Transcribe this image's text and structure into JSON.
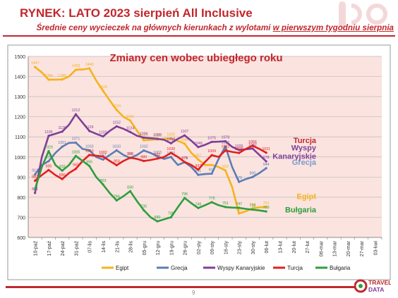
{
  "header": {
    "title": "RYNEK: LATO 2023 sierpień All Inclusive",
    "subtitle_prefix": "Średnie ceny wycieczek na głównych kierunkach z wylotami ",
    "subtitle_underlined": "w pierwszym tygodniu sierpnia"
  },
  "footer": {
    "page_number": "9",
    "logo_line1": "TRAVEL",
    "logo_line2": "DATA"
  },
  "colors": {
    "brand_red": "#c0272d",
    "plot_bg": "#fbe3df",
    "grid": "#bdbdbd"
  },
  "chart_data": {
    "type": "line",
    "title": "Zmiany cen wobec ubiegłego roku",
    "ylim": [
      600,
      1500
    ],
    "yticks": [
      600,
      700,
      800,
      900,
      1000,
      1100,
      1200,
      1300,
      1400,
      1500
    ],
    "grid": true,
    "legend_position": "bottom",
    "categories": [
      "10-paź",
      "17-paź",
      "24-paź",
      "31-paź",
      "07-lis",
      "14-lis",
      "21-lis",
      "28-lis",
      "05-gru",
      "12-gru",
      "19-gru",
      "26-gru",
      "02-sty",
      "09-sty",
      "16-sty",
      "23-sty",
      "30-sty",
      "06-lut",
      "13-lut",
      "20-lut",
      "27-lut",
      "06-mar",
      "13-mar",
      "20-mar",
      "27-mar",
      "03-kwi"
    ],
    "tick_labels": [
      "10-paź",
      "17-paź",
      "24-paź",
      "31-paź",
      "07-lis",
      "14-lis",
      "21-lis",
      "28-lis",
      "05-gru",
      "12-gru",
      "19-gru",
      "26-gru",
      "02-sty",
      "09-sty",
      "16-sty",
      "23-sty",
      "30-sty",
      "06-lut",
      "13-lut",
      "20-lut",
      "27-lut",
      "06-mar",
      "13-mar",
      "20-mar",
      "27-mar",
      "03-kwi"
    ],
    "series": [
      {
        "name": "Egipt",
        "color": "#f5b31b",
        "points": [
          [
            0,
            1447
          ],
          [
            0.5,
            1420
          ],
          [
            1,
            1384
          ],
          [
            1.5,
            1384
          ],
          [
            2,
            1385
          ],
          [
            2.5,
            1400
          ],
          [
            3,
            1433
          ],
          [
            3.5,
            1435
          ],
          [
            4,
            1440
          ],
          [
            4.5,
            1380
          ],
          [
            5,
            1329
          ],
          [
            5.5,
            1280
          ],
          [
            6,
            1234
          ],
          [
            6.5,
            1200
          ],
          [
            7,
            1181
          ],
          [
            7.5,
            1130
          ],
          [
            8,
            1083
          ],
          [
            8.5,
            1085
          ],
          [
            9,
            1087
          ],
          [
            9.5,
            1090
          ],
          [
            10,
            1092
          ],
          [
            10.5,
            1080
          ],
          [
            11,
            1066
          ],
          [
            11.5,
            1020
          ],
          [
            12,
            987
          ],
          [
            12.5,
            960
          ],
          [
            13,
            960
          ],
          [
            13.5,
            950
          ],
          [
            14,
            933
          ],
          [
            14.5,
            850
          ],
          [
            15,
            719
          ],
          [
            15.5,
            730
          ],
          [
            16,
            744
          ],
          [
            16.5,
            750
          ],
          [
            17,
            751
          ]
        ],
        "labels": [
          [
            0,
            1447
          ],
          [
            1,
            1384
          ],
          [
            2,
            1385
          ],
          [
            3,
            1433
          ],
          [
            4,
            1440
          ],
          [
            5,
            1329
          ],
          [
            6,
            1234
          ],
          [
            7,
            1181
          ],
          [
            8,
            1083
          ],
          [
            9,
            1087
          ],
          [
            10,
            1092
          ],
          [
            11,
            1066
          ],
          [
            12,
            987
          ],
          [
            14,
            933
          ],
          [
            15,
            719
          ],
          [
            16,
            744
          ],
          [
            17,
            751
          ]
        ]
      },
      {
        "name": "Grecja",
        "color": "#5b7db5",
        "points": [
          [
            0,
            913
          ],
          [
            0.5,
            960
          ],
          [
            1,
            979
          ],
          [
            1.5,
            1020
          ],
          [
            2,
            1051
          ],
          [
            2.5,
            1070
          ],
          [
            3,
            1071
          ],
          [
            3.5,
            1040
          ],
          [
            4,
            1033
          ],
          [
            4.5,
            1000
          ],
          [
            5,
            987
          ],
          [
            5.5,
            1010
          ],
          [
            6,
            1033
          ],
          [
            6.5,
            1010
          ],
          [
            7,
            995
          ],
          [
            7.5,
            1010
          ],
          [
            8,
            1032
          ],
          [
            8.5,
            1020
          ],
          [
            9,
            1003
          ],
          [
            9.5,
            990
          ],
          [
            10,
            1000
          ],
          [
            10.5,
            960
          ],
          [
            11,
            974
          ],
          [
            11.5,
            950
          ],
          [
            12,
            911
          ],
          [
            12.5,
            915
          ],
          [
            13,
            917
          ],
          [
            13.5,
            990
          ],
          [
            14,
            1052
          ],
          [
            14.5,
            950
          ],
          [
            15,
            876
          ],
          [
            15.5,
            890
          ],
          [
            16,
            900
          ],
          [
            16.5,
            920
          ],
          [
            17,
            944
          ]
        ],
        "labels": [
          [
            0,
            913
          ],
          [
            1,
            979
          ],
          [
            2,
            1051
          ],
          [
            3,
            1071
          ],
          [
            4,
            1033
          ],
          [
            5,
            987
          ],
          [
            6,
            1033
          ],
          [
            7,
            995
          ],
          [
            8,
            1032
          ],
          [
            9,
            1003
          ],
          [
            10,
            1000
          ],
          [
            11,
            974
          ],
          [
            12,
            911
          ],
          [
            13,
            917
          ],
          [
            14,
            1052
          ],
          [
            15,
            876
          ],
          [
            16,
            900
          ],
          [
            17,
            944
          ]
        ]
      },
      {
        "name": "Wyspy Kanaryjskie",
        "color": "#7f3f98",
        "points": [
          [
            0,
            821
          ],
          [
            0.5,
            1000
          ],
          [
            1,
            1105
          ],
          [
            1.5,
            1115
          ],
          [
            2,
            1126
          ],
          [
            2.5,
            1160
          ],
          [
            3,
            1212
          ],
          [
            3.5,
            1170
          ],
          [
            4,
            1129
          ],
          [
            4.5,
            1115
          ],
          [
            5,
            1102
          ],
          [
            5.5,
            1130
          ],
          [
            6,
            1152
          ],
          [
            6.5,
            1140
          ],
          [
            7,
            1124
          ],
          [
            7.5,
            1105
          ],
          [
            8,
            1096
          ],
          [
            8.5,
            1093
          ],
          [
            9,
            1090
          ],
          [
            9.5,
            1085
          ],
          [
            10,
            1068
          ],
          [
            10.5,
            1090
          ],
          [
            11,
            1107
          ],
          [
            11.5,
            1080
          ],
          [
            12,
            1049
          ],
          [
            12.5,
            1060
          ],
          [
            13,
            1075
          ],
          [
            13.5,
            1076
          ],
          [
            14,
            1078
          ],
          [
            14.5,
            1050
          ],
          [
            15,
            1035
          ],
          [
            15.5,
            1038
          ],
          [
            16,
            1042
          ],
          [
            16.5,
            1010
          ],
          [
            17,
            978
          ]
        ],
        "labels": [
          [
            0,
            821
          ],
          [
            1,
            1105
          ],
          [
            2,
            1126
          ],
          [
            3,
            1212
          ],
          [
            4,
            1129
          ],
          [
            5,
            1102
          ],
          [
            6,
            1152
          ],
          [
            7,
            1124
          ],
          [
            8,
            1096
          ],
          [
            9,
            1090
          ],
          [
            10,
            1068
          ],
          [
            11,
            1107
          ],
          [
            12,
            1049
          ],
          [
            13,
            1075
          ],
          [
            14,
            1078
          ],
          [
            15,
            1035
          ],
          [
            16,
            1042
          ],
          [
            17,
            978
          ]
        ]
      },
      {
        "name": "Turcja",
        "color": "#e02020",
        "points": [
          [
            0,
            882
          ],
          [
            0.5,
            910
          ],
          [
            1,
            935
          ],
          [
            1.5,
            910
          ],
          [
            2,
            890
          ],
          [
            2.5,
            920
          ],
          [
            3,
            941
          ],
          [
            3.5,
            980
          ],
          [
            4,
            1010
          ],
          [
            4.5,
            1006
          ],
          [
            5,
            1002
          ],
          [
            5.5,
            980
          ],
          [
            6,
            959
          ],
          [
            6.5,
            980
          ],
          [
            7,
            996
          ],
          [
            7.5,
            990
          ],
          [
            8,
            980
          ],
          [
            8.5,
            985
          ],
          [
            9,
            992
          ],
          [
            9.5,
            1000
          ],
          [
            10,
            1020
          ],
          [
            10.5,
            1000
          ],
          [
            11,
            975
          ],
          [
            11.5,
            960
          ],
          [
            12,
            937
          ],
          [
            12.5,
            975
          ],
          [
            13,
            1009
          ],
          [
            13.5,
            1000
          ],
          [
            14,
            1032
          ],
          [
            14.5,
            1025
          ],
          [
            15,
            1020
          ],
          [
            15.5,
            1040
          ],
          [
            16,
            1056
          ],
          [
            16.5,
            1040
          ],
          [
            17,
            1021
          ]
        ],
        "labels": [
          [
            0,
            882
          ],
          [
            1,
            935
          ],
          [
            2,
            890
          ],
          [
            3,
            941
          ],
          [
            4,
            1010
          ],
          [
            5,
            1002
          ],
          [
            6,
            959
          ],
          [
            7,
            996
          ],
          [
            8,
            980
          ],
          [
            9,
            992
          ],
          [
            10,
            1020
          ],
          [
            11,
            975
          ],
          [
            12,
            937
          ],
          [
            13,
            1009
          ],
          [
            14,
            1032
          ],
          [
            15,
            1020
          ],
          [
            16,
            1056
          ],
          [
            17,
            1021
          ]
        ]
      },
      {
        "name": "Bułgaria",
        "color": "#2e9e3e",
        "points": [
          [
            0,
            840
          ],
          [
            0.5,
            950
          ],
          [
            1,
            1029
          ],
          [
            1.5,
            960
          ],
          [
            2,
            932
          ],
          [
            2.5,
            960
          ],
          [
            3,
            1005
          ],
          [
            3.5,
            980
          ],
          [
            4,
            955
          ],
          [
            4.5,
            900
          ],
          [
            5,
            863
          ],
          [
            5.5,
            820
          ],
          [
            6,
            784
          ],
          [
            6.5,
            805
          ],
          [
            7,
            830
          ],
          [
            7.5,
            780
          ],
          [
            8,
            735
          ],
          [
            8.5,
            700
          ],
          [
            9,
            680
          ],
          [
            9.5,
            690
          ],
          [
            10,
            700
          ],
          [
            10.5,
            750
          ],
          [
            11,
            796
          ],
          [
            11.5,
            770
          ],
          [
            12,
            746
          ],
          [
            12.5,
            760
          ],
          [
            13,
            775
          ],
          [
            13.5,
            760
          ],
          [
            14,
            751
          ],
          [
            14.5,
            748
          ],
          [
            15,
            747
          ],
          [
            15.5,
            742
          ],
          [
            16,
            738
          ],
          [
            16.5,
            734
          ],
          [
            17,
            729
          ]
        ],
        "labels": [
          [
            1,
            1029
          ],
          [
            2,
            932
          ],
          [
            3,
            1005
          ],
          [
            4,
            955
          ],
          [
            5,
            863
          ],
          [
            6,
            784
          ],
          [
            7,
            830
          ],
          [
            8,
            735
          ],
          [
            9,
            680
          ],
          [
            10,
            700
          ],
          [
            11,
            796
          ],
          [
            12,
            746
          ],
          [
            13,
            775
          ],
          [
            14,
            751
          ],
          [
            15,
            747
          ],
          [
            16,
            738
          ],
          [
            17,
            729
          ]
        ]
      }
    ],
    "end_labels": [
      {
        "text": "Turcja",
        "color": "#c0272d",
        "y": 1070
      },
      {
        "text": "Wyspy",
        "color": "#7f3f98",
        "y": 1033
      },
      {
        "text": "Kanaryjskie",
        "color": "#7f3f98",
        "y": 990
      },
      {
        "text": "Grecja",
        "color": "#7a9acb",
        "y": 960
      },
      {
        "text": "Egipt",
        "color": "#f5b31b",
        "y": 790
      },
      {
        "text": "Bułgaria",
        "color": "#2e9e3e",
        "y": 725
      }
    ]
  }
}
